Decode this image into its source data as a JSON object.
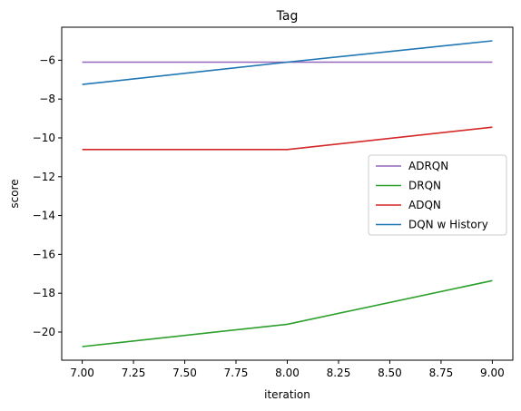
{
  "chart_data": {
    "type": "line",
    "title": "Tag",
    "xlabel": "iteration",
    "ylabel": "score",
    "xlim": [
      6.9,
      9.1
    ],
    "ylim": [
      -21.45,
      -4.3
    ],
    "x_ticks": [
      7.0,
      7.25,
      7.5,
      7.75,
      8.0,
      8.25,
      8.5,
      8.75,
      9.0
    ],
    "x_tick_labels": [
      "7.00",
      "7.25",
      "7.50",
      "7.75",
      "8.00",
      "8.25",
      "8.50",
      "8.75",
      "9.00"
    ],
    "y_ticks": [
      -20,
      -18,
      -16,
      -14,
      -12,
      -10,
      -8,
      -6
    ],
    "y_tick_labels": [
      "−20",
      "−18",
      "−16",
      "−14",
      "−12",
      "−10",
      "−8",
      "−6"
    ],
    "grid": false,
    "legend_position": "center-right",
    "x": [
      7,
      8,
      9
    ],
    "series": [
      {
        "name": "ADRQN",
        "color": "#9467bd",
        "values": [
          -6.1,
          -6.1,
          -6.1
        ]
      },
      {
        "name": "DRQN",
        "color": "#2ca02c",
        "values": [
          -20.75,
          -19.6,
          -17.35
        ]
      },
      {
        "name": "ADQN",
        "color": "#d62728",
        "values": [
          -10.6,
          -10.6,
          -9.45
        ]
      },
      {
        "name": "DQN w History",
        "color": "#1f77b4",
        "values": [
          -7.25,
          -6.1,
          -5.0
        ]
      }
    ]
  }
}
